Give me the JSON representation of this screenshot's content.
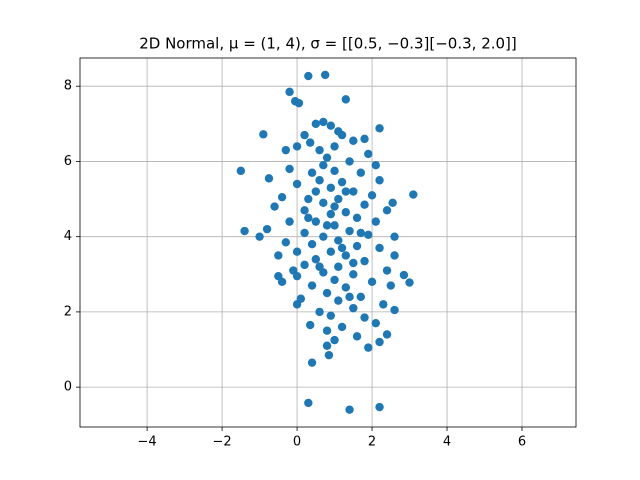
{
  "chart_data": {
    "type": "scatter",
    "title": "2D Normal, μ = (1, 4), σ = [[0.5, −0.3][−0.3, 2.0]]",
    "color": "#1f77b4",
    "grid": true,
    "xlim": [
      -5.79,
      7.44
    ],
    "ylim": [
      -1.06,
      8.75
    ],
    "xticks": [
      {
        "value": -4,
        "label": "−4"
      },
      {
        "value": -2,
        "label": "−2"
      },
      0,
      2,
      4,
      6
    ],
    "yticks": [
      0,
      2,
      4,
      6,
      8
    ],
    "x": [
      0.3,
      0.75,
      -0.2,
      -0.05,
      0.05,
      1.3,
      -0.9,
      -1.5,
      -0.75,
      3.1,
      2.2,
      2.55,
      0.3,
      1.4,
      2.2,
      0.4,
      0.85,
      3.0,
      2.85,
      -0.1,
      -0.4,
      -0.5,
      -1.4,
      0.5,
      0.7,
      0.9,
      1.1,
      1.2,
      0.2,
      0.35,
      1.8,
      1.5,
      0.0,
      -0.3,
      0.6,
      1.9,
      0.8,
      1.4,
      2.1,
      -0.2,
      0.4,
      1.0,
      1.7,
      2.2,
      0.6,
      1.2,
      0.0,
      0.9,
      1.5,
      2.0,
      0.3,
      -0.4,
      1.1,
      0.7,
      1.8,
      2.4,
      -0.6,
      0.2,
      1.3,
      0.9,
      1.6,
      2.1,
      -0.2,
      0.5,
      1.0,
      -0.8,
      -1.0,
      0.2,
      1.4,
      1.9,
      2.6,
      0.7,
      1.1,
      -0.3,
      0.4,
      1.6,
      2.2,
      0.0,
      0.9,
      1.3,
      2.6,
      -0.5,
      0.5,
      1.8,
      0.2,
      1.1,
      2.4,
      0.7,
      1.5,
      0.0,
      1.0,
      2.0,
      0.4,
      1.3,
      2.5,
      0.8,
      1.7,
      0.1,
      1.1,
      2.3,
      0.0,
      1.5,
      0.6,
      2.6,
      0.9,
      1.8,
      0.35,
      1.2,
      2.1,
      0.8,
      2.4,
      1.6,
      1.0,
      2.2,
      0.8,
      1.9,
      0.7,
      1.0,
      1.3,
      0.8,
      1.2,
      0.6,
      1.4,
      0.3,
      1.7,
      1.0,
      0.5,
      1.5
    ],
    "y": [
      8.27,
      8.3,
      7.85,
      7.6,
      7.55,
      7.65,
      6.72,
      5.75,
      5.55,
      5.12,
      6.88,
      4.9,
      -0.42,
      -0.6,
      -0.53,
      0.65,
      0.85,
      2.78,
      2.98,
      3.1,
      2.8,
      2.95,
      4.15,
      7.0,
      7.05,
      6.95,
      6.8,
      6.7,
      6.7,
      6.5,
      6.6,
      6.55,
      6.4,
      6.3,
      6.3,
      6.2,
      6.1,
      6.0,
      5.9,
      5.8,
      5.7,
      5.75,
      5.7,
      5.5,
      5.5,
      5.45,
      5.4,
      5.3,
      5.2,
      5.1,
      5.0,
      5.05,
      5.0,
      4.9,
      4.85,
      4.7,
      4.8,
      4.7,
      4.65,
      4.6,
      4.5,
      4.4,
      4.4,
      4.4,
      4.3,
      4.2,
      4.0,
      4.1,
      4.15,
      4.05,
      4.0,
      4.0,
      3.9,
      3.85,
      3.8,
      3.75,
      3.7,
      3.6,
      3.6,
      3.5,
      3.5,
      3.5,
      3.4,
      3.35,
      3.25,
      3.2,
      3.1,
      3.05,
      3.0,
      2.95,
      2.85,
      2.8,
      2.7,
      2.65,
      2.7,
      2.5,
      2.4,
      2.35,
      2.3,
      2.2,
      2.2,
      2.1,
      2.0,
      2.05,
      1.9,
      1.85,
      1.65,
      1.6,
      1.7,
      1.5,
      1.4,
      1.35,
      1.25,
      1.2,
      1.1,
      1.05,
      5.9,
      6.4,
      5.2,
      4.3,
      3.7,
      3.2,
      2.4,
      4.5,
      4.1,
      4.8,
      5.2,
      3.3
    ]
  }
}
